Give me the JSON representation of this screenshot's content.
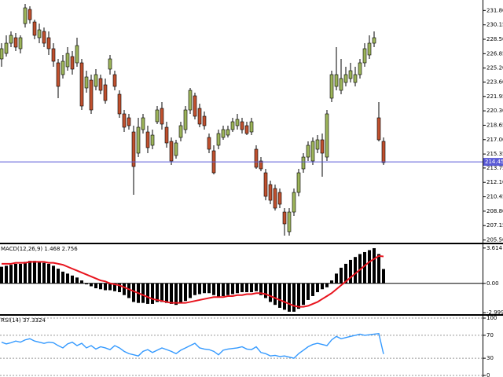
{
  "chart_data": [
    {
      "type": "candlestick",
      "open": [
        226.25,
        226.88,
        228.05,
        228.68,
        227.42,
        230.3,
        231.92,
        230.48,
        228.68,
        229.4,
        228.68,
        227.42,
        225.8,
        224.45,
        225.35,
        226.52,
        225.8,
        225.8,
        222.92,
        223.82,
        223.1,
        224.0,
        223.28,
        225.08,
        224.45,
        222.2,
        219.95,
        219.5,
        217.88,
        215.45,
        218.15,
        217.88,
        216.35,
        219.05,
        220.58,
        218.42,
        216.8,
        215.18,
        217.25,
        218.15,
        220.4,
        222.02,
        220.58,
        219.68,
        217.25,
        215.72,
        216.35,
        217.25,
        217.52,
        218.15,
        218.6,
        219.05,
        218.6,
        217.88,
        215.9,
        214.55,
        213.2,
        211.85,
        211.4,
        210.95,
        208.7,
        206.45,
        208.7,
        210.95,
        213.65,
        215.0,
        214.55,
        215.9,
        216.98,
        215.0,
        221.75,
        223.1,
        222.65,
        223.55,
        224.0,
        223.55,
        224.45,
        225.8,
        226.7,
        228.05,
        219.5,
        216.8
      ],
      "high": [
        228.05,
        228.95,
        229.4,
        229.22,
        228.95,
        232.55,
        232.28,
        230.75,
        230.3,
        229.85,
        229.4,
        228.05,
        226.25,
        226.7,
        227.6,
        227.15,
        228.68,
        226.25,
        224.9,
        224.45,
        225.08,
        224.45,
        224.0,
        226.7,
        224.9,
        222.65,
        220.4,
        219.95,
        218.6,
        219.5,
        219.95,
        218.6,
        218.15,
        220.85,
        221.3,
        219.05,
        217.25,
        216.98,
        219.05,
        220.85,
        222.92,
        222.38,
        221.12,
        220.22,
        217.7,
        216.35,
        218.15,
        218.6,
        218.6,
        219.5,
        219.95,
        219.5,
        219.05,
        219.5,
        216.35,
        215.0,
        213.65,
        212.3,
        211.85,
        211.4,
        209.15,
        209.15,
        211.4,
        213.65,
        215.45,
        216.8,
        217.25,
        217.52,
        217.7,
        220.4,
        224.9,
        227.6,
        226.25,
        225.35,
        225.8,
        225.35,
        226.25,
        228.05,
        228.95,
        229.4,
        221.3,
        217.25
      ],
      "low": [
        225.35,
        226.52,
        227.6,
        227.15,
        226.88,
        229.85,
        230.3,
        228.5,
        228.05,
        227.6,
        226.7,
        225.35,
        221.75,
        224.0,
        224.9,
        224.45,
        225.35,
        220.4,
        222.38,
        219.95,
        222.65,
        222.2,
        221.12,
        224.45,
        222.65,
        219.5,
        217.88,
        218.15,
        210.68,
        215.0,
        217.7,
        215.45,
        215.9,
        218.78,
        218.15,
        216.08,
        214.1,
        214.82,
        216.8,
        217.7,
        219.95,
        219.32,
        218.42,
        218.15,
        215.45,
        213.02,
        215.9,
        216.98,
        217.25,
        217.88,
        218.15,
        217.7,
        217.52,
        217.52,
        213.65,
        213.38,
        210.05,
        209.6,
        208.88,
        209.15,
        206.0,
        206.0,
        208.25,
        210.5,
        213.2,
        214.55,
        214.1,
        215.45,
        212.75,
        214.55,
        221.3,
        222.65,
        222.2,
        223.1,
        223.55,
        223.1,
        224.0,
        225.35,
        226.25,
        227.6,
        216.8,
        214.1
      ],
      "close": [
        227.42,
        228.05,
        228.95,
        227.6,
        228.68,
        232.1,
        230.75,
        228.95,
        229.58,
        228.05,
        227.42,
        225.98,
        223.1,
        225.98,
        226.88,
        225.08,
        227.78,
        220.85,
        224.18,
        220.4,
        224.45,
        222.65,
        221.48,
        226.25,
        223.1,
        219.95,
        218.42,
        218.6,
        213.92,
        218.42,
        219.5,
        216.08,
        217.52,
        220.4,
        218.78,
        216.62,
        214.55,
        216.62,
        218.6,
        220.4,
        222.65,
        219.68,
        218.78,
        218.6,
        215.9,
        213.2,
        217.7,
        218.15,
        218.15,
        219.05,
        219.32,
        218.15,
        217.7,
        219.05,
        213.83,
        213.65,
        210.5,
        210.05,
        209.15,
        209.6,
        207.35,
        208.7,
        210.95,
        213.2,
        215.0,
        216.35,
        216.8,
        216.98,
        215.45,
        219.95,
        224.45,
        224.45,
        224.0,
        224.45,
        224.9,
        224.45,
        225.8,
        227.42,
        228.05,
        228.68,
        216.98,
        214.37
      ],
      "up_color": "#9db55a",
      "down_color": "#c0502e",
      "ylim": [
        205.28,
        233
      ],
      "yticks": [
        {
          "value": 231.8,
          "label": "231.80"
        },
        {
          "value": 230.15,
          "label": "230.15"
        },
        {
          "value": 228.5,
          "label": "228.50"
        },
        {
          "value": 226.85,
          "label": "226.85"
        },
        {
          "value": 225.2,
          "label": "225.20"
        },
        {
          "value": 223.6,
          "label": "223.60"
        },
        {
          "value": 221.95,
          "label": "221.95"
        },
        {
          "value": 220.3,
          "label": "220.30"
        },
        {
          "value": 218.65,
          "label": "218.65"
        },
        {
          "value": 217,
          "label": "217.00"
        },
        {
          "value": 215.35,
          "label": "215.35"
        },
        {
          "value": 213.75,
          "label": "213.75"
        },
        {
          "value": 212.1,
          "label": "212.10"
        },
        {
          "value": 210.45,
          "label": "210.45"
        },
        {
          "value": 208.8,
          "label": "208.80"
        },
        {
          "value": 207.15,
          "label": "207.15"
        },
        {
          "value": 205.5,
          "label": "205.50"
        }
      ],
      "hline": 214.45,
      "hline_color": "#5a5ad6"
    },
    {
      "type": "macd",
      "title": "MACD(12,26,9) 1.468 2.756",
      "values": [
        1.7,
        1.8,
        1.9,
        2.0,
        2.0,
        2.2,
        2.3,
        2.3,
        2.2,
        2.1,
        2.0,
        1.8,
        1.5,
        1.2,
        1.0,
        0.8,
        0.6,
        0.3,
        -0.1,
        -0.3,
        -0.5,
        -0.6,
        -0.7,
        -0.7,
        -0.8,
        -0.9,
        -1.2,
        -1.5,
        -1.9,
        -2.0,
        -2.0,
        -2.1,
        -2.1,
        -1.9,
        -1.9,
        -2.0,
        -2.1,
        -2.2,
        -2.0,
        -1.8,
        -1.5,
        -1.2,
        -1.1,
        -1.0,
        -1.0,
        -1.2,
        -1.4,
        -1.3,
        -1.2,
        -1.1,
        -1.0,
        -0.9,
        -0.9,
        -0.9,
        -0.8,
        -1.2,
        -1.5,
        -1.9,
        -2.2,
        -2.5,
        -2.7,
        -2.9,
        -2.9,
        -2.6,
        -2.2,
        -1.7,
        -1.3,
        -0.9,
        -0.6,
        -0.4,
        0.3,
        1.0,
        1.6,
        2.0,
        2.4,
        2.7,
        3.0,
        3.2,
        3.4,
        3.6,
        3.0,
        1.468
      ],
      "signal": [
        2.0,
        2.0,
        2.0,
        2.1,
        2.1,
        2.1,
        2.2,
        2.2,
        2.2,
        2.2,
        2.1,
        2.1,
        2.0,
        1.9,
        1.7,
        1.5,
        1.3,
        1.1,
        0.9,
        0.7,
        0.5,
        0.3,
        0.2,
        0.0,
        -0.1,
        -0.2,
        -0.4,
        -0.6,
        -0.8,
        -1.0,
        -1.2,
        -1.4,
        -1.6,
        -1.7,
        -1.8,
        -1.9,
        -2.0,
        -2.0,
        -2.0,
        -2.0,
        -1.9,
        -1.8,
        -1.7,
        -1.6,
        -1.5,
        -1.4,
        -1.4,
        -1.4,
        -1.3,
        -1.3,
        -1.2,
        -1.2,
        -1.1,
        -1.1,
        -1.0,
        -1.0,
        -1.1,
        -1.3,
        -1.5,
        -1.7,
        -1.9,
        -2.1,
        -2.3,
        -2.4,
        -2.4,
        -2.3,
        -2.1,
        -1.9,
        -1.6,
        -1.3,
        -1.0,
        -0.6,
        -0.2,
        0.2,
        0.6,
        1.0,
        1.4,
        1.8,
        2.2,
        2.5,
        2.8,
        2.756
      ],
      "color": "#000000",
      "signal_color": "#e8141e",
      "ylim": [
        -3.07,
        4.0
      ],
      "yticks": [
        3.614,
        {
          "value": 0,
          "label": "0.00"
        },
        -2.999
      ]
    },
    {
      "type": "line",
      "title": "RSI(14) 37.3324",
      "values": [
        58,
        55,
        57,
        60,
        58,
        62,
        64,
        60,
        58,
        56,
        58,
        57,
        52,
        48,
        55,
        58,
        52,
        56,
        48,
        52,
        46,
        50,
        48,
        45,
        52,
        48,
        42,
        38,
        36,
        34,
        42,
        45,
        40,
        44,
        48,
        45,
        42,
        38,
        44,
        48,
        52,
        56,
        48,
        46,
        45,
        42,
        36,
        44,
        46,
        47,
        48,
        50,
        46,
        45,
        50,
        40,
        38,
        34,
        35,
        33,
        34,
        32,
        30,
        38,
        44,
        50,
        54,
        56,
        54,
        52,
        62,
        68,
        64,
        66,
        68,
        70,
        72,
        70,
        71,
        72,
        73,
        37.3324
      ],
      "color": "#3399ff",
      "ylim": [
        0,
        100
      ],
      "yticks": [
        100,
        70,
        30,
        0
      ],
      "grid": true
    }
  ]
}
